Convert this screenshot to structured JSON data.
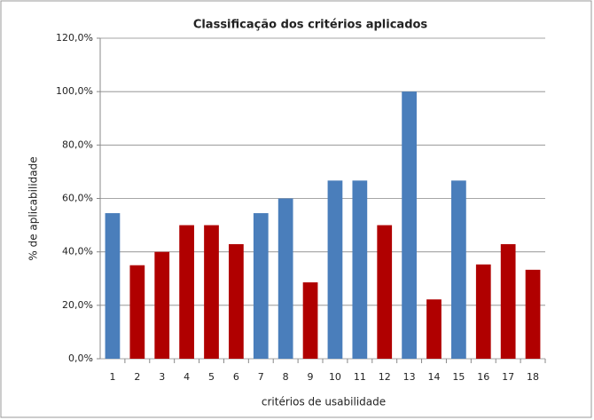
{
  "chart_data": {
    "type": "bar",
    "title": "Classificação dos critérios aplicados",
    "x_label": "critérios de usabilidade",
    "y_label": "% de aplicabilidade",
    "categories": [
      "1",
      "2",
      "3",
      "4",
      "5",
      "6",
      "7",
      "8",
      "9",
      "10",
      "11",
      "12",
      "13",
      "14",
      "15",
      "16",
      "17",
      "18"
    ],
    "values": [
      54.5,
      35,
      40,
      50,
      50,
      42.9,
      54.5,
      60,
      28.6,
      66.7,
      66.7,
      50,
      100,
      22.2,
      66.7,
      35.3,
      42.9,
      33.3
    ],
    "colors": [
      "#4a7ebb",
      "#b00000",
      "#b00000",
      "#b00000",
      "#b00000",
      "#b00000",
      "#4a7ebb",
      "#4a7ebb",
      "#b00000",
      "#4a7ebb",
      "#4a7ebb",
      "#b00000",
      "#4a7ebb",
      "#b00000",
      "#4a7ebb",
      "#b00000",
      "#b00000",
      "#b00000"
    ],
    "ylim": [
      0,
      120
    ],
    "yticks": [
      {
        "value": 0,
        "label": "0,0%"
      },
      {
        "value": 20,
        "label": "20,0%"
      },
      {
        "value": 40,
        "label": "40,0%"
      },
      {
        "value": 60,
        "label": "60,0%"
      },
      {
        "value": 80,
        "label": "80,0%"
      },
      {
        "value": 100,
        "label": "100,0%"
      },
      {
        "value": 120,
        "label": "120,0%"
      }
    ],
    "grid": true
  }
}
